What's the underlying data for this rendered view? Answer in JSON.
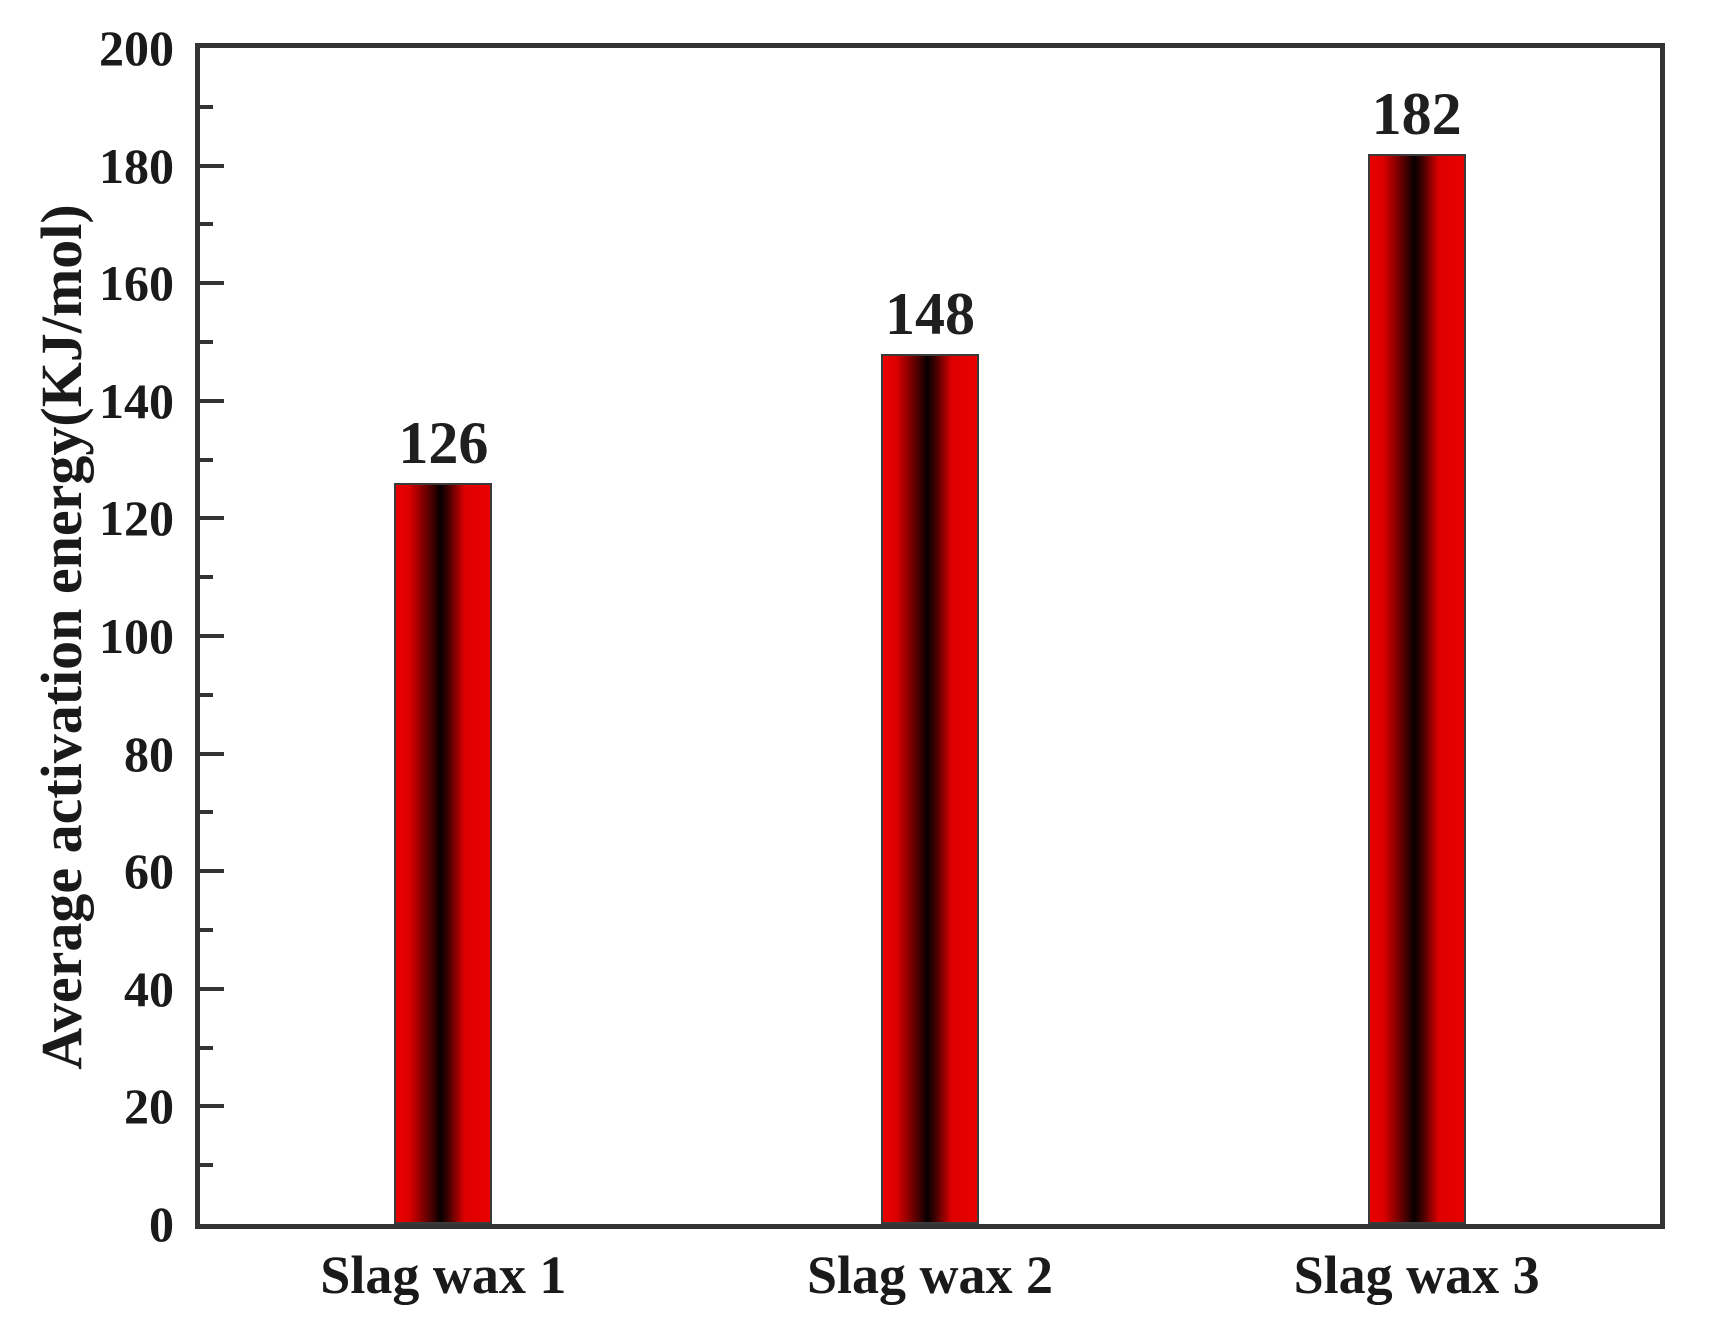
{
  "chart_data": {
    "type": "bar",
    "title": "",
    "categories": [
      "Slag wax 1",
      "Slag wax 2",
      "Slag wax 3"
    ],
    "values": [
      126,
      148,
      182
    ],
    "bar_value_labels": [
      "126",
      "148",
      "182"
    ],
    "xlabel": "",
    "ylabel": "Average activation energy(KJ/mol)",
    "ylim": [
      0,
      200
    ],
    "y_major_tick_values": [
      0,
      20,
      40,
      60,
      80,
      100,
      120,
      140,
      160,
      180,
      200
    ],
    "y_major_tick_labels": [
      "0",
      "20",
      "40",
      "60",
      "80",
      "100",
      "120",
      "140",
      "160",
      "180",
      "200"
    ],
    "y_minor_tick_values": [
      10,
      30,
      50,
      70,
      90,
      110,
      130,
      150,
      170,
      190
    ],
    "grid": false,
    "legend": null,
    "colors": {
      "bar_red": "#ea0000",
      "bar_gradient_dark": "#060000",
      "bar_border": "#3a3a3a",
      "axis": "#333333",
      "text": "#1a1a1a",
      "background": "#ffffff"
    }
  }
}
